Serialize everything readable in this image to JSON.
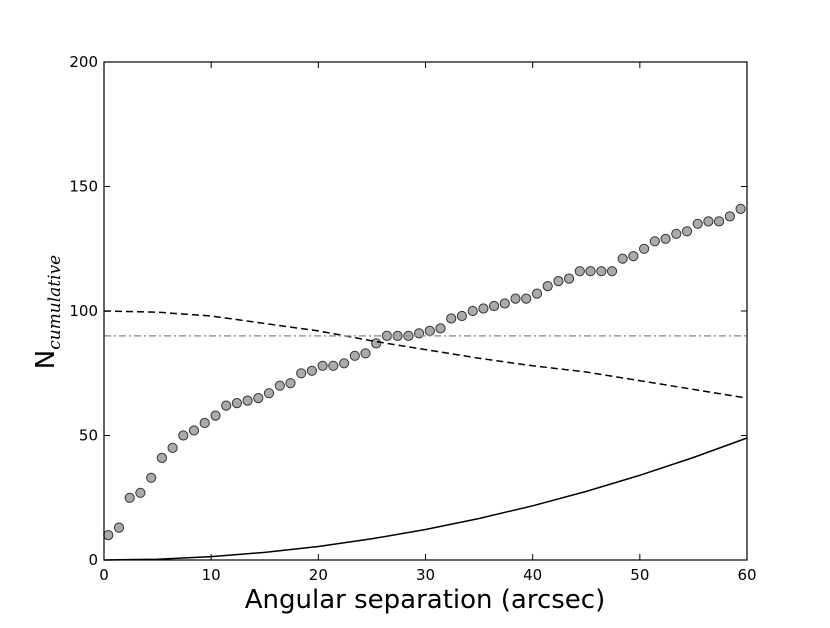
{
  "chart_data": {
    "type": "scatter",
    "xlabel": "Angular separation (arcsec)",
    "ylabel": {
      "main": "N",
      "subscript": "cumulative"
    },
    "xlim": [
      0,
      60
    ],
    "ylim": [
      0,
      200
    ],
    "xticks": [
      "0",
      "10",
      "20",
      "30",
      "40",
      "50",
      "60"
    ],
    "yticks": [
      "0",
      "50",
      "100",
      "150",
      "200"
    ],
    "grid": false,
    "series": [
      {
        "style": "markers",
        "marker": "circle",
        "color": "#aaaaaa",
        "edge": "#333333",
        "x": [
          0.4,
          1.4,
          2.4,
          3.4,
          4.4,
          5.4,
          6.4,
          7.4,
          8.4,
          9.4,
          10.4,
          11.4,
          12.4,
          13.4,
          14.4,
          15.4,
          16.4,
          17.4,
          18.4,
          19.4,
          20.4,
          21.4,
          22.4,
          23.4,
          24.4,
          25.4,
          26.4,
          27.4,
          28.4,
          29.4,
          30.4,
          31.4,
          32.4,
          33.4,
          34.4,
          35.4,
          36.4,
          37.4,
          38.4,
          39.4,
          40.4,
          41.4,
          42.4,
          43.4,
          44.4,
          45.4,
          46.4,
          47.4,
          48.4,
          49.4,
          50.4,
          51.4,
          52.4,
          53.4,
          54.4,
          55.4,
          56.4,
          57.4,
          58.4,
          59.4
        ],
        "y": [
          10,
          13,
          25,
          27,
          33,
          41,
          45,
          50,
          52,
          55,
          58,
          62,
          63,
          64,
          65,
          67,
          70,
          71,
          75,
          76,
          78,
          78,
          79,
          82,
          83,
          87,
          90,
          90,
          90,
          91,
          92,
          93,
          97,
          98,
          100,
          101,
          102,
          103,
          105,
          105,
          107,
          110,
          112,
          113,
          116,
          116,
          116,
          116,
          121,
          122,
          125,
          128,
          129,
          131,
          132,
          135,
          136,
          136,
          138,
          141
        ]
      },
      {
        "style": "dashed",
        "color": "#000000",
        "x": [
          0,
          5,
          10,
          15,
          20,
          25,
          30,
          35,
          40,
          45,
          50,
          55,
          60
        ],
        "y": [
          100,
          99.5,
          98,
          95,
          92,
          88,
          84.5,
          81,
          78,
          75.5,
          72,
          68.5,
          65
        ]
      },
      {
        "style": "dash-dot",
        "color": "#999999",
        "x": [
          0,
          60
        ],
        "y": [
          90,
          90
        ]
      },
      {
        "style": "solid",
        "color": "#000000",
        "x": [
          0,
          5,
          10,
          15,
          20,
          25,
          30,
          35,
          40,
          45,
          50,
          55,
          60
        ],
        "y": [
          0,
          0.34,
          1.36,
          3.06,
          5.44,
          8.5,
          12.25,
          16.67,
          21.78,
          27.56,
          34.03,
          41.18,
          49
        ]
      }
    ]
  }
}
